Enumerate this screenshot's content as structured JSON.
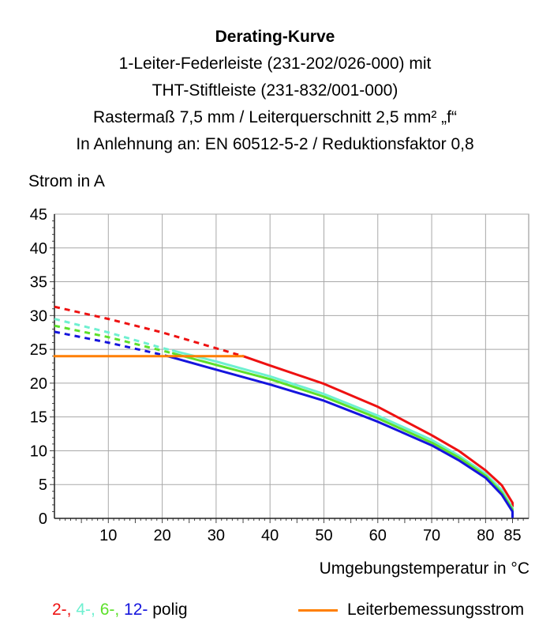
{
  "title_lines": [
    "Derating-Kurve",
    "1-Leiter-Federleiste (231-202/026-000) mit",
    "THT-Stiftleiste (231-832/001-000)",
    "Rastermaß 7,5 mm / Leiterquerschnitt 2,5 mm² „f“",
    "In Anlehnung an: EN 60512-5-2 / Reduktionsfaktor 0,8"
  ],
  "legend": {
    "poles": [
      {
        "text": "2-, ",
        "color": "#ee1111"
      },
      {
        "text": "4-, ",
        "color": "#6ef0d0"
      },
      {
        "text": "6-, ",
        "color": "#5ce02a"
      },
      {
        "text": "12-",
        "color": "#1515dd"
      }
    ],
    "poles_suffix": " polig",
    "rated_current": "Leiterbemessungsstrom",
    "rated_current_color": "#ff7f00"
  },
  "chart_data": {
    "type": "line",
    "xlabel": "Umgebungstemperatur in °C",
    "ylabel": "Strom in A",
    "xlim": [
      0,
      88
    ],
    "ylim": [
      0,
      45
    ],
    "x_ticks": [
      10,
      20,
      30,
      40,
      50,
      60,
      70,
      80,
      85
    ],
    "y_ticks": [
      0,
      5,
      10,
      15,
      20,
      25,
      30,
      35,
      40,
      45
    ],
    "grid": true,
    "series": [
      {
        "name": "2-",
        "color": "#ee1111",
        "dashed": [
          [
            0,
            31.3
          ],
          [
            10,
            29.5
          ],
          [
            20,
            27.5
          ],
          [
            35,
            24.0
          ]
        ],
        "solid": [
          [
            35,
            24.0
          ],
          [
            40,
            22.6
          ],
          [
            50,
            19.9
          ],
          [
            60,
            16.5
          ],
          [
            70,
            12.3
          ],
          [
            75,
            10.0
          ],
          [
            80,
            7.1
          ],
          [
            83,
            4.9
          ],
          [
            85,
            2.3
          ],
          [
            85,
            1.8
          ]
        ]
      },
      {
        "name": "4-",
        "color": "#6ef0d0",
        "dashed": [
          [
            0,
            29.5
          ],
          [
            10,
            27.5
          ],
          [
            20,
            25.2
          ],
          [
            22,
            24.8
          ]
        ],
        "solid": [
          [
            22,
            24.8
          ],
          [
            30,
            23.2
          ],
          [
            40,
            21.0
          ],
          [
            50,
            18.4
          ],
          [
            60,
            15.2
          ],
          [
            70,
            11.6
          ],
          [
            75,
            9.3
          ],
          [
            80,
            6.6
          ],
          [
            83,
            4.2
          ],
          [
            85,
            1.5
          ],
          [
            85,
            0.8
          ]
        ]
      },
      {
        "name": "6-",
        "color": "#5ce02a",
        "dashed": [
          [
            0,
            28.5
          ],
          [
            10,
            26.8
          ],
          [
            20,
            24.8
          ],
          [
            22,
            24.4
          ]
        ],
        "solid": [
          [
            22,
            24.4
          ],
          [
            30,
            22.7
          ],
          [
            40,
            20.6
          ],
          [
            50,
            18.0
          ],
          [
            60,
            14.8
          ],
          [
            70,
            11.2
          ],
          [
            75,
            9.0
          ],
          [
            80,
            6.3
          ],
          [
            83,
            3.8
          ],
          [
            85,
            1.3
          ],
          [
            85,
            0.6
          ]
        ]
      },
      {
        "name": "12-",
        "color": "#1515dd",
        "dashed": [
          [
            0,
            27.6
          ],
          [
            10,
            26.0
          ],
          [
            20,
            24.2
          ],
          [
            21,
            24.0
          ]
        ],
        "solid": [
          [
            21,
            24.0
          ],
          [
            30,
            22.0
          ],
          [
            40,
            19.8
          ],
          [
            50,
            17.4
          ],
          [
            60,
            14.3
          ],
          [
            70,
            10.8
          ],
          [
            75,
            8.6
          ],
          [
            80,
            6.0
          ],
          [
            83,
            3.5
          ],
          [
            85,
            1.0
          ],
          [
            85,
            0.2
          ]
        ]
      },
      {
        "name": "Leiterbemessungsstrom",
        "color": "#ff7f00",
        "solid": [
          [
            0,
            24.0
          ],
          [
            35,
            24.0
          ]
        ]
      }
    ]
  }
}
